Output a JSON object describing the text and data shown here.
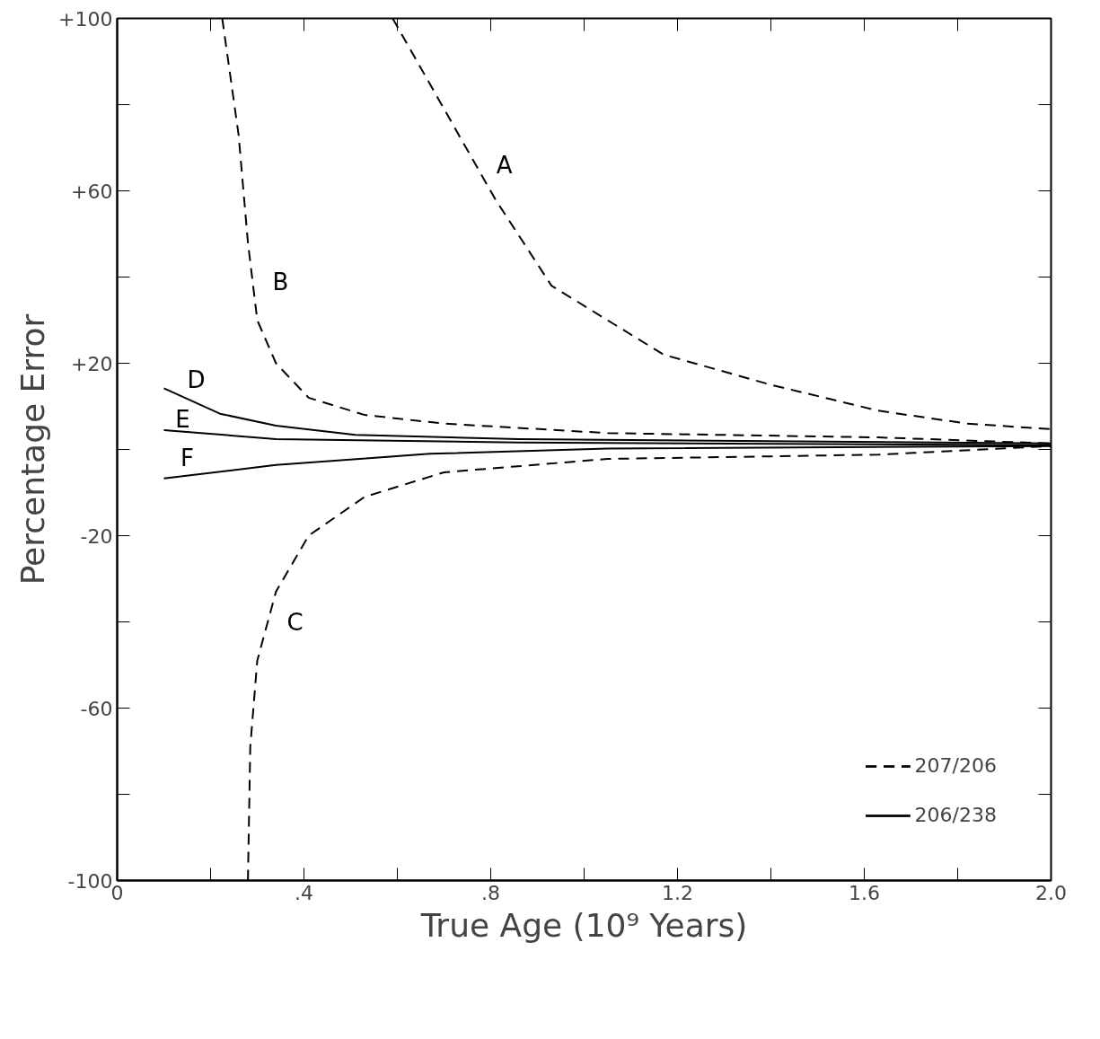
{
  "chart_data": {
    "type": "line",
    "xlabel": "True Age (10⁹ Years)",
    "ylabel": "Percentage Error",
    "xlim": [
      0,
      2.0
    ],
    "ylim": [
      -100,
      100
    ],
    "xticks": [
      0,
      {
        "value": 0.2,
        "label": null
      },
      {
        "value": 0.4,
        "label": ".4"
      },
      {
        "value": 0.6,
        "label": null
      },
      {
        "value": 0.8,
        "label": ".8"
      },
      {
        "value": 1.0,
        "label": null
      },
      {
        "value": 1.2,
        "label": "1.2"
      },
      {
        "value": 1.4,
        "label": null
      },
      {
        "value": 1.6,
        "label": "1.6"
      },
      {
        "value": 1.8,
        "label": null
      },
      {
        "value": 2.0,
        "label": "2.0"
      }
    ],
    "yticks": [
      -100,
      {
        "value": -80,
        "label": null
      },
      -60,
      {
        "value": -40,
        "label": null
      },
      -20,
      {
        "value": 0,
        "label": null
      },
      {
        "value": 20,
        "label": "+20"
      },
      {
        "value": 40,
        "label": null
      },
      {
        "value": 60,
        "label": "+60"
      },
      {
        "value": 80,
        "label": null
      },
      {
        "value": 100,
        "label": "+100"
      }
    ],
    "grid": false,
    "series": [
      {
        "name": "A",
        "color": "#000000",
        "line_style": "dashed",
        "x": [
          0.59,
          0.7,
          0.81,
          0.93,
          1.17,
          1.4,
          1.63,
          1.82,
          2.0
        ],
        "values": [
          100,
          79,
          58,
          38,
          22,
          15,
          9,
          6,
          4.7
        ]
      },
      {
        "name": "B",
        "color": "#000000",
        "line_style": "dashed",
        "x": [
          0.225,
          0.26,
          0.28,
          0.3,
          0.34,
          0.41,
          0.53,
          0.7,
          1.05,
          1.63,
          2.0
        ],
        "values": [
          100,
          73,
          48,
          30,
          20,
          12,
          8,
          6,
          3.8,
          2.8,
          1.4
        ]
      },
      {
        "name": "C",
        "color": "#000000",
        "line_style": "dashed",
        "x": [
          0.28,
          0.285,
          0.3,
          0.34,
          0.41,
          0.53,
          0.7,
          1.05,
          1.63,
          2.0
        ],
        "values": [
          -100,
          -69,
          -49,
          -33,
          -20,
          -11,
          -5.3,
          -2.2,
          -1.2,
          0.8
        ]
      },
      {
        "name": "D",
        "color": "#000000",
        "line_style": "solid",
        "x": [
          0.1,
          0.22,
          0.34,
          0.51,
          0.86,
          2.0
        ],
        "values": [
          14.2,
          8.3,
          5.5,
          3.4,
          2.4,
          1.4
        ]
      },
      {
        "name": "E",
        "color": "#000000",
        "line_style": "solid",
        "x": [
          0.1,
          0.34,
          0.86,
          2.0
        ],
        "values": [
          4.5,
          2.4,
          1.6,
          1.0
        ]
      },
      {
        "name": "F",
        "color": "#000000",
        "line_style": "solid",
        "x": [
          0.1,
          0.34,
          0.67,
          1.05,
          2.0
        ],
        "values": [
          -6.7,
          -3.6,
          -1.0,
          0.2,
          0.8
        ]
      }
    ],
    "annotations": [
      "207/206",
      "206/238"
    ]
  }
}
